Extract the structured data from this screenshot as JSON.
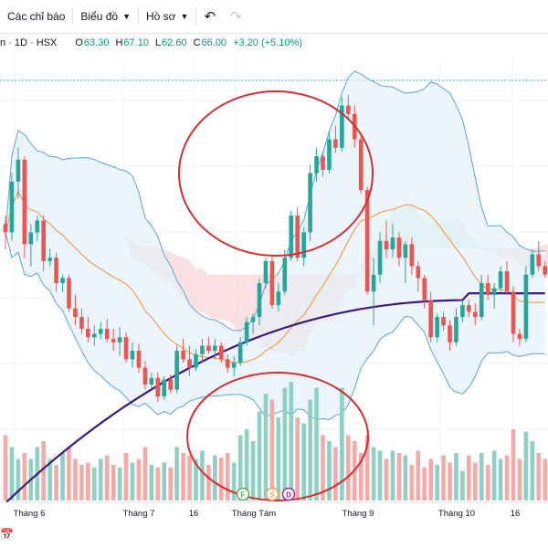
{
  "toolbar": {
    "indicators_label": "Các chỉ báo",
    "chart_label": "Biểu đồ",
    "profile_label": "Hồ sơ",
    "undo_icon": "undo-icon",
    "redo_icon": "redo-icon"
  },
  "legend": {
    "symbol": "n · 1D · HSX",
    "open_key": "O",
    "open": "63.30",
    "high_key": "H",
    "high": "67.10",
    "low_key": "L",
    "low": "62.60",
    "close_key": "C",
    "close": "66.00",
    "change": "+3.20 (+5.10%)"
  },
  "colors": {
    "up": "#26a69a",
    "down": "#ef5350",
    "volume_up": "#8ed1c4",
    "volume_down": "#f7a9a7",
    "bb_line": "#5ba4d6",
    "bb_fill": "#e3f1fa",
    "ma_short": "#f0a050",
    "ma_long": "#3f1a7a",
    "cloud_green": "#d4eddc",
    "cloud_red": "#f9d6d8",
    "annotation": "#d32f2f",
    "price_line": "#26a69a"
  },
  "markers": [
    {
      "label": "F",
      "color": "#4caf50"
    },
    {
      "label": "S",
      "color": "#f0a050"
    },
    {
      "label": "D",
      "color": "#9c27b0"
    }
  ],
  "chart_data": {
    "type": "candlestick",
    "y_range": [
      47,
      74
    ],
    "grid": true,
    "x_tick_labels": [
      "Tháng 6",
      "Tháng 7",
      "16",
      "Tháng Tám",
      "Tháng 9",
      "Tháng 10",
      "16"
    ],
    "candles": [
      [
        64.0,
        64.5,
        62.5,
        63.5
      ],
      [
        63.5,
        67.0,
        63.0,
        66.5
      ],
      [
        66.5,
        68.5,
        65.5,
        67.8
      ],
      [
        67.8,
        68.0,
        62.0,
        62.8
      ],
      [
        62.8,
        64.0,
        61.5,
        63.5
      ],
      [
        63.5,
        64.5,
        63.0,
        64.2
      ],
      [
        64.2,
        64.5,
        61.2,
        61.8
      ],
      [
        61.8,
        62.5,
        61.5,
        62.0
      ],
      [
        62.0,
        62.3,
        60.0,
        60.5
      ],
      [
        60.5,
        61.0,
        60.0,
        60.8
      ],
      [
        60.8,
        61.0,
        58.8,
        59.0
      ],
      [
        59.0,
        59.8,
        58.0,
        58.5
      ],
      [
        58.5,
        59.0,
        57.5,
        57.8
      ],
      [
        57.8,
        58.5,
        57.0,
        57.3
      ],
      [
        57.3,
        58.0,
        56.8,
        57.5
      ],
      [
        57.5,
        58.2,
        57.2,
        57.8
      ],
      [
        57.8,
        58.4,
        57.0,
        57.2
      ],
      [
        57.2,
        57.8,
        56.5,
        57.0
      ],
      [
        57.0,
        57.9,
        56.2,
        57.3
      ],
      [
        57.3,
        57.6,
        55.8,
        56.0
      ],
      [
        56.0,
        57.0,
        55.5,
        56.5
      ],
      [
        56.5,
        56.9,
        55.2,
        55.5
      ],
      [
        55.5,
        55.9,
        54.2,
        54.5
      ],
      [
        54.5,
        55.2,
        54.3,
        54.9
      ],
      [
        54.9,
        55.2,
        53.5,
        53.8
      ],
      [
        53.8,
        55.0,
        53.6,
        54.8
      ],
      [
        54.8,
        55.1,
        54.0,
        54.2
      ],
      [
        54.2,
        56.8,
        54.0,
        56.5
      ],
      [
        56.5,
        57.2,
        55.8,
        56.0
      ],
      [
        56.0,
        56.8,
        55.0,
        55.5
      ],
      [
        55.5,
        56.6,
        55.3,
        56.3
      ],
      [
        56.3,
        57.2,
        55.8,
        56.8
      ],
      [
        56.8,
        57.3,
        56.3,
        56.5
      ],
      [
        56.5,
        57.2,
        56.0,
        56.8
      ],
      [
        56.8,
        57.0,
        55.8,
        56.0
      ],
      [
        56.0,
        56.3,
        55.2,
        55.5
      ],
      [
        55.5,
        56.2,
        55.0,
        55.8
      ],
      [
        55.8,
        57.3,
        55.6,
        57.0
      ],
      [
        57.0,
        58.5,
        56.8,
        58.2
      ],
      [
        58.2,
        58.7,
        57.5,
        58.5
      ],
      [
        58.5,
        60.8,
        58.0,
        60.5
      ],
      [
        60.5,
        62.0,
        60.2,
        61.8
      ],
      [
        61.8,
        62.2,
        59.0,
        59.2
      ],
      [
        59.2,
        60.5,
        58.8,
        60.0
      ],
      [
        60.0,
        62.5,
        59.8,
        62.0
      ],
      [
        62.0,
        64.8,
        61.8,
        64.5
      ],
      [
        64.5,
        65.0,
        61.8,
        62.0
      ],
      [
        62.0,
        63.8,
        61.5,
        63.5
      ],
      [
        63.5,
        67.5,
        63.0,
        67.0
      ],
      [
        67.0,
        68.5,
        66.5,
        68.0
      ],
      [
        68.0,
        68.3,
        66.8,
        67.2
      ],
      [
        67.2,
        69.5,
        67.0,
        69.0
      ],
      [
        69.0,
        69.8,
        68.2,
        68.5
      ],
      [
        68.5,
        71.5,
        68.3,
        71.0
      ],
      [
        71.0,
        71.6,
        70.2,
        70.5
      ],
      [
        70.5,
        71.0,
        68.5,
        69.0
      ],
      [
        69.0,
        69.2,
        65.8,
        66.0
      ],
      [
        66.0,
        66.2,
        59.8,
        60.0
      ],
      [
        60.0,
        62.0,
        58.0,
        61.0
      ],
      [
        61.0,
        63.5,
        60.5,
        63.0
      ],
      [
        63.0,
        64.2,
        62.0,
        62.5
      ],
      [
        62.5,
        64.0,
        62.0,
        63.2
      ],
      [
        63.2,
        63.5,
        61.5,
        62.0
      ],
      [
        62.0,
        63.0,
        60.5,
        62.8
      ],
      [
        62.8,
        63.2,
        61.0,
        61.5
      ],
      [
        61.5,
        61.8,
        60.0,
        60.8
      ],
      [
        60.8,
        61.0,
        59.0,
        59.5
      ],
      [
        59.5,
        60.0,
        57.0,
        57.3
      ],
      [
        57.3,
        58.7,
        57.0,
        58.5
      ],
      [
        58.5,
        58.8,
        57.7,
        58.0
      ],
      [
        58.0,
        58.3,
        56.5,
        57.0
      ],
      [
        57.0,
        59.0,
        56.8,
        58.5
      ],
      [
        58.5,
        59.5,
        58.2,
        59.2
      ],
      [
        59.2,
        59.5,
        58.5,
        58.8
      ],
      [
        58.8,
        59.3,
        58.0,
        58.5
      ],
      [
        58.5,
        61.0,
        58.3,
        60.5
      ],
      [
        60.5,
        61.0,
        59.5,
        59.8
      ],
      [
        59.8,
        60.5,
        59.0,
        60.2
      ],
      [
        60.2,
        61.5,
        60.0,
        61.2
      ],
      [
        61.2,
        61.8,
        59.8,
        60.0
      ],
      [
        60.0,
        60.3,
        57.0,
        57.5
      ],
      [
        57.5,
        57.8,
        56.8,
        57.2
      ],
      [
        57.2,
        61.5,
        57.0,
        61.0
      ],
      [
        61.0,
        62.5,
        60.8,
        62.2
      ],
      [
        62.2,
        63.0,
        61.2,
        61.5
      ],
      [
        61.5,
        61.8,
        60.8,
        61.0
      ]
    ],
    "volume": [
      0.55,
      0.45,
      0.35,
      0.4,
      0.35,
      0.45,
      0.5,
      0.35,
      0.3,
      0.4,
      0.45,
      0.35,
      0.3,
      0.32,
      0.28,
      0.35,
      0.38,
      0.3,
      0.28,
      0.4,
      0.32,
      0.35,
      0.45,
      0.3,
      0.28,
      0.32,
      0.28,
      0.45,
      0.4,
      0.38,
      0.35,
      0.42,
      0.3,
      0.38,
      0.36,
      0.4,
      0.32,
      0.55,
      0.6,
      0.5,
      0.75,
      0.9,
      0.85,
      0.7,
      0.95,
      1.0,
      0.7,
      0.65,
      0.85,
      0.95,
      0.55,
      0.5,
      0.45,
      0.95,
      0.55,
      0.5,
      0.4,
      0.55,
      0.45,
      0.42,
      0.35,
      0.42,
      0.4,
      0.38,
      0.3,
      0.42,
      0.28,
      0.35,
      0.3,
      0.38,
      0.32,
      0.4,
      0.25,
      0.38,
      0.32,
      0.4,
      0.3,
      0.42,
      0.35,
      0.38,
      0.6,
      0.35,
      0.58,
      0.5,
      0.4,
      0.35
    ]
  }
}
